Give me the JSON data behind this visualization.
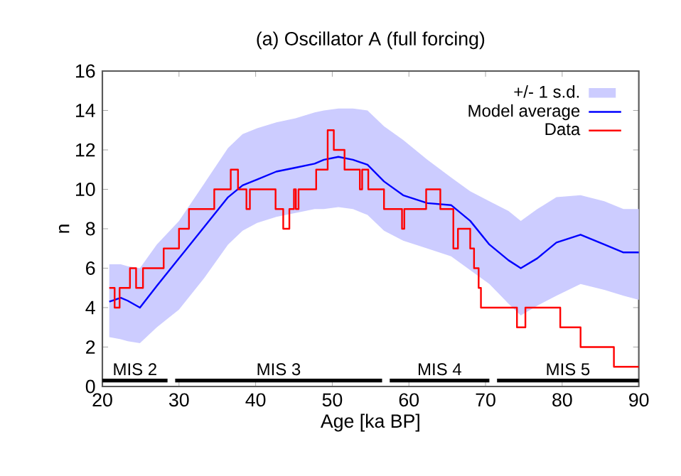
{
  "chart_data": {
    "type": "line",
    "title": "(a) Oscillator A (full forcing)",
    "xlabel": "Age [ka BP]",
    "ylabel": "n",
    "xlim": [
      20,
      90
    ],
    "ylim": [
      0,
      16
    ],
    "xticks": [
      20,
      30,
      40,
      50,
      60,
      70,
      80,
      90
    ],
    "yticks": [
      0,
      2,
      4,
      6,
      8,
      10,
      12,
      14,
      16
    ],
    "legend": "top right",
    "grid": false,
    "annotations": [
      "+/- 1 s.d."
    ],
    "series": [
      {
        "name": "Model average",
        "color": "#0000ff",
        "x": [
          20.9,
          22.4,
          23.3,
          24.9,
          27.1,
          30,
          33.3,
          36.4,
          38.3,
          40.2,
          42.7,
          45.2,
          47.7,
          48.9,
          50.8,
          52.7,
          54.6,
          56.75,
          59.25,
          62.4,
          65.5,
          68,
          70.5,
          73,
          74.6,
          76.75,
          79.25,
          82.4,
          85.5,
          88,
          90
        ],
        "values": [
          4.3,
          4.5,
          4.35,
          4.0,
          5.1,
          6.5,
          8.1,
          9.6,
          10.2,
          10.5,
          10.9,
          11.1,
          11.3,
          11.5,
          11.65,
          11.5,
          11.25,
          10.4,
          9.7,
          9.3,
          9.2,
          8.4,
          7.2,
          6.4,
          6.0,
          6.5,
          7.3,
          7.7,
          7.2,
          6.8,
          6.8
        ],
        "lower": [
          2.5,
          2.4,
          2.3,
          2.2,
          3.0,
          3.9,
          5.5,
          7.2,
          7.9,
          8.3,
          8.6,
          8.8,
          9.0,
          9.0,
          9.1,
          9.0,
          8.7,
          7.9,
          7.4,
          7.0,
          6.6,
          5.9,
          5.2,
          4.2,
          3.6,
          4.1,
          4.6,
          5.2,
          4.9,
          4.6,
          4.4
        ],
        "upper": [
          6.2,
          6.2,
          6.1,
          6.0,
          7.2,
          8.4,
          10.3,
          12.1,
          12.8,
          13.1,
          13.4,
          13.6,
          13.9,
          14.0,
          14.1,
          14.1,
          14.0,
          13.2,
          12.5,
          11.5,
          10.6,
          9.9,
          9.4,
          8.9,
          8.4,
          9.0,
          9.6,
          9.7,
          9.4,
          9.0,
          9.0
        ]
      },
      {
        "name": "MIS 2",
        "color": "#000000",
        "x": [
          20,
          28.5
        ],
        "values": [
          0.3,
          0.3
        ]
      },
      {
        "name": "MIS 3",
        "color": "#000000",
        "x": [
          29.5,
          56.5
        ],
        "values": [
          0.3,
          0.3
        ]
      },
      {
        "name": "MIS 4",
        "color": "#000000",
        "x": [
          57.5,
          70.5
        ],
        "values": [
          0.3,
          0.3
        ]
      },
      {
        "name": "MIS 5",
        "color": "#000000",
        "x": [
          71.5,
          90
        ],
        "values": [
          0.3,
          0.3
        ]
      },
      {
        "name": "Data",
        "type": "step",
        "color": "#ff0000",
        "x": [
          20.9,
          21.6,
          22.25,
          23.6,
          24.4,
          25.3,
          28.0,
          30.0,
          31.3,
          34.6,
          36.75,
          37.7,
          38.8,
          39.25,
          42.6,
          43.6,
          44.4,
          45.0,
          45.25,
          45.6,
          47.9,
          49.4,
          50.2,
          51.6,
          53.6,
          53.9,
          54.7,
          56.75,
          59.1,
          59.4,
          62.25,
          64.1,
          65.8,
          66.4,
          68.0,
          68.5,
          69.1,
          69.4,
          74.1,
          75.2,
          79.75,
          82.4,
          86.75,
          90
        ],
        "values": [
          5,
          4,
          5,
          6,
          5,
          6,
          7,
          8,
          9,
          10,
          11,
          10,
          9,
          10,
          9,
          8,
          9,
          10,
          9,
          10,
          11,
          13,
          12,
          11,
          10,
          11,
          10,
          9,
          8,
          9,
          10,
          9,
          7,
          8,
          7,
          6,
          5,
          4,
          3,
          4,
          3,
          2,
          1,
          1
        ]
      }
    ]
  }
}
